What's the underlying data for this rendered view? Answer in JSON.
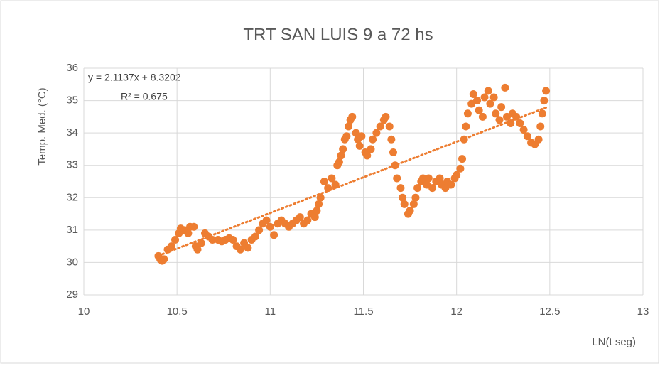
{
  "chart_data": {
    "type": "scatter",
    "title": "TRT SAN LUIS 9 a 72 hs",
    "x_label": "LN(t seg)",
    "y_label": "Temp. Med. (°C)",
    "annotations": [
      "y = 2.1137x + 8.3202",
      "R² = 0.675"
    ],
    "color": "#ed7d31",
    "grid": true,
    "trendline": true,
    "xlim": [
      10,
      13
    ],
    "xticks": [
      10,
      10.5,
      11,
      11.5,
      12,
      12.5,
      13
    ],
    "ylim": [
      29,
      36
    ],
    "yticks": [
      29,
      30,
      31,
      32,
      33,
      34,
      35,
      36
    ],
    "x": [
      10.4,
      10.41,
      10.42,
      10.43,
      10.45,
      10.47,
      10.49,
      10.51,
      10.52,
      10.54,
      10.56,
      10.57,
      10.59,
      10.6,
      10.61,
      10.63,
      10.65,
      10.67,
      10.69,
      10.72,
      10.74,
      10.76,
      10.78,
      10.8,
      10.82,
      10.84,
      10.86,
      10.88,
      10.9,
      10.92,
      10.94,
      10.96,
      10.98,
      11.0,
      11.02,
      11.04,
      11.06,
      11.08,
      11.1,
      11.12,
      11.14,
      11.16,
      11.18,
      11.2,
      11.22,
      11.24,
      11.25,
      11.26,
      11.27,
      11.29,
      11.31,
      11.33,
      11.35,
      11.36,
      11.37,
      11.38,
      11.39,
      11.4,
      11.41,
      11.42,
      11.43,
      11.44,
      11.46,
      11.47,
      11.48,
      11.49,
      11.51,
      11.52,
      11.54,
      11.55,
      11.57,
      11.59,
      11.61,
      11.62,
      11.64,
      11.65,
      11.66,
      11.67,
      11.68,
      11.7,
      11.71,
      11.72,
      11.74,
      11.75,
      11.77,
      11.78,
      11.79,
      11.81,
      11.82,
      11.84,
      11.85,
      11.87,
      11.89,
      11.91,
      11.92,
      11.94,
      11.95,
      11.97,
      11.99,
      12.0,
      12.02,
      12.03,
      12.04,
      12.05,
      12.06,
      12.08,
      12.09,
      12.11,
      12.12,
      12.14,
      12.15,
      12.17,
      12.18,
      12.2,
      12.21,
      12.23,
      12.24,
      12.26,
      12.27,
      12.29,
      12.3,
      12.32,
      12.34,
      12.36,
      12.38,
      12.4,
      12.42,
      12.44,
      12.45,
      12.46,
      12.47,
      12.48
    ],
    "values": [
      30.2,
      30.1,
      30.05,
      30.1,
      30.4,
      30.5,
      30.7,
      30.9,
      31.05,
      31.0,
      30.9,
      31.1,
      31.1,
      30.5,
      30.4,
      30.6,
      30.9,
      30.8,
      30.7,
      30.7,
      30.65,
      30.7,
      30.75,
      30.7,
      30.5,
      30.4,
      30.6,
      30.45,
      30.7,
      30.8,
      31.0,
      31.2,
      31.3,
      31.1,
      30.85,
      31.2,
      31.3,
      31.2,
      31.1,
      31.2,
      31.3,
      31.4,
      31.2,
      31.3,
      31.5,
      31.4,
      31.6,
      31.8,
      32.0,
      32.5,
      32.3,
      32.6,
      32.4,
      33.0,
      33.1,
      33.3,
      33.5,
      33.8,
      33.9,
      34.2,
      34.4,
      34.5,
      34.0,
      33.8,
      33.6,
      33.9,
      33.4,
      33.3,
      33.5,
      33.8,
      34.0,
      34.2,
      34.4,
      34.5,
      34.2,
      33.8,
      33.4,
      33.0,
      32.6,
      32.3,
      32.0,
      31.8,
      31.5,
      31.6,
      31.8,
      32.0,
      32.3,
      32.5,
      32.6,
      32.4,
      32.6,
      32.3,
      32.5,
      32.6,
      32.4,
      32.3,
      32.5,
      32.4,
      32.6,
      32.7,
      32.9,
      33.2,
      33.8,
      34.2,
      34.6,
      34.9,
      35.2,
      35.0,
      34.7,
      34.5,
      35.1,
      35.3,
      34.9,
      35.1,
      34.6,
      34.4,
      34.8,
      35.4,
      34.5,
      34.3,
      34.6,
      34.5,
      34.3,
      34.1,
      33.9,
      33.7,
      33.65,
      33.8,
      34.2,
      34.6,
      35.0,
      35.3
    ]
  }
}
